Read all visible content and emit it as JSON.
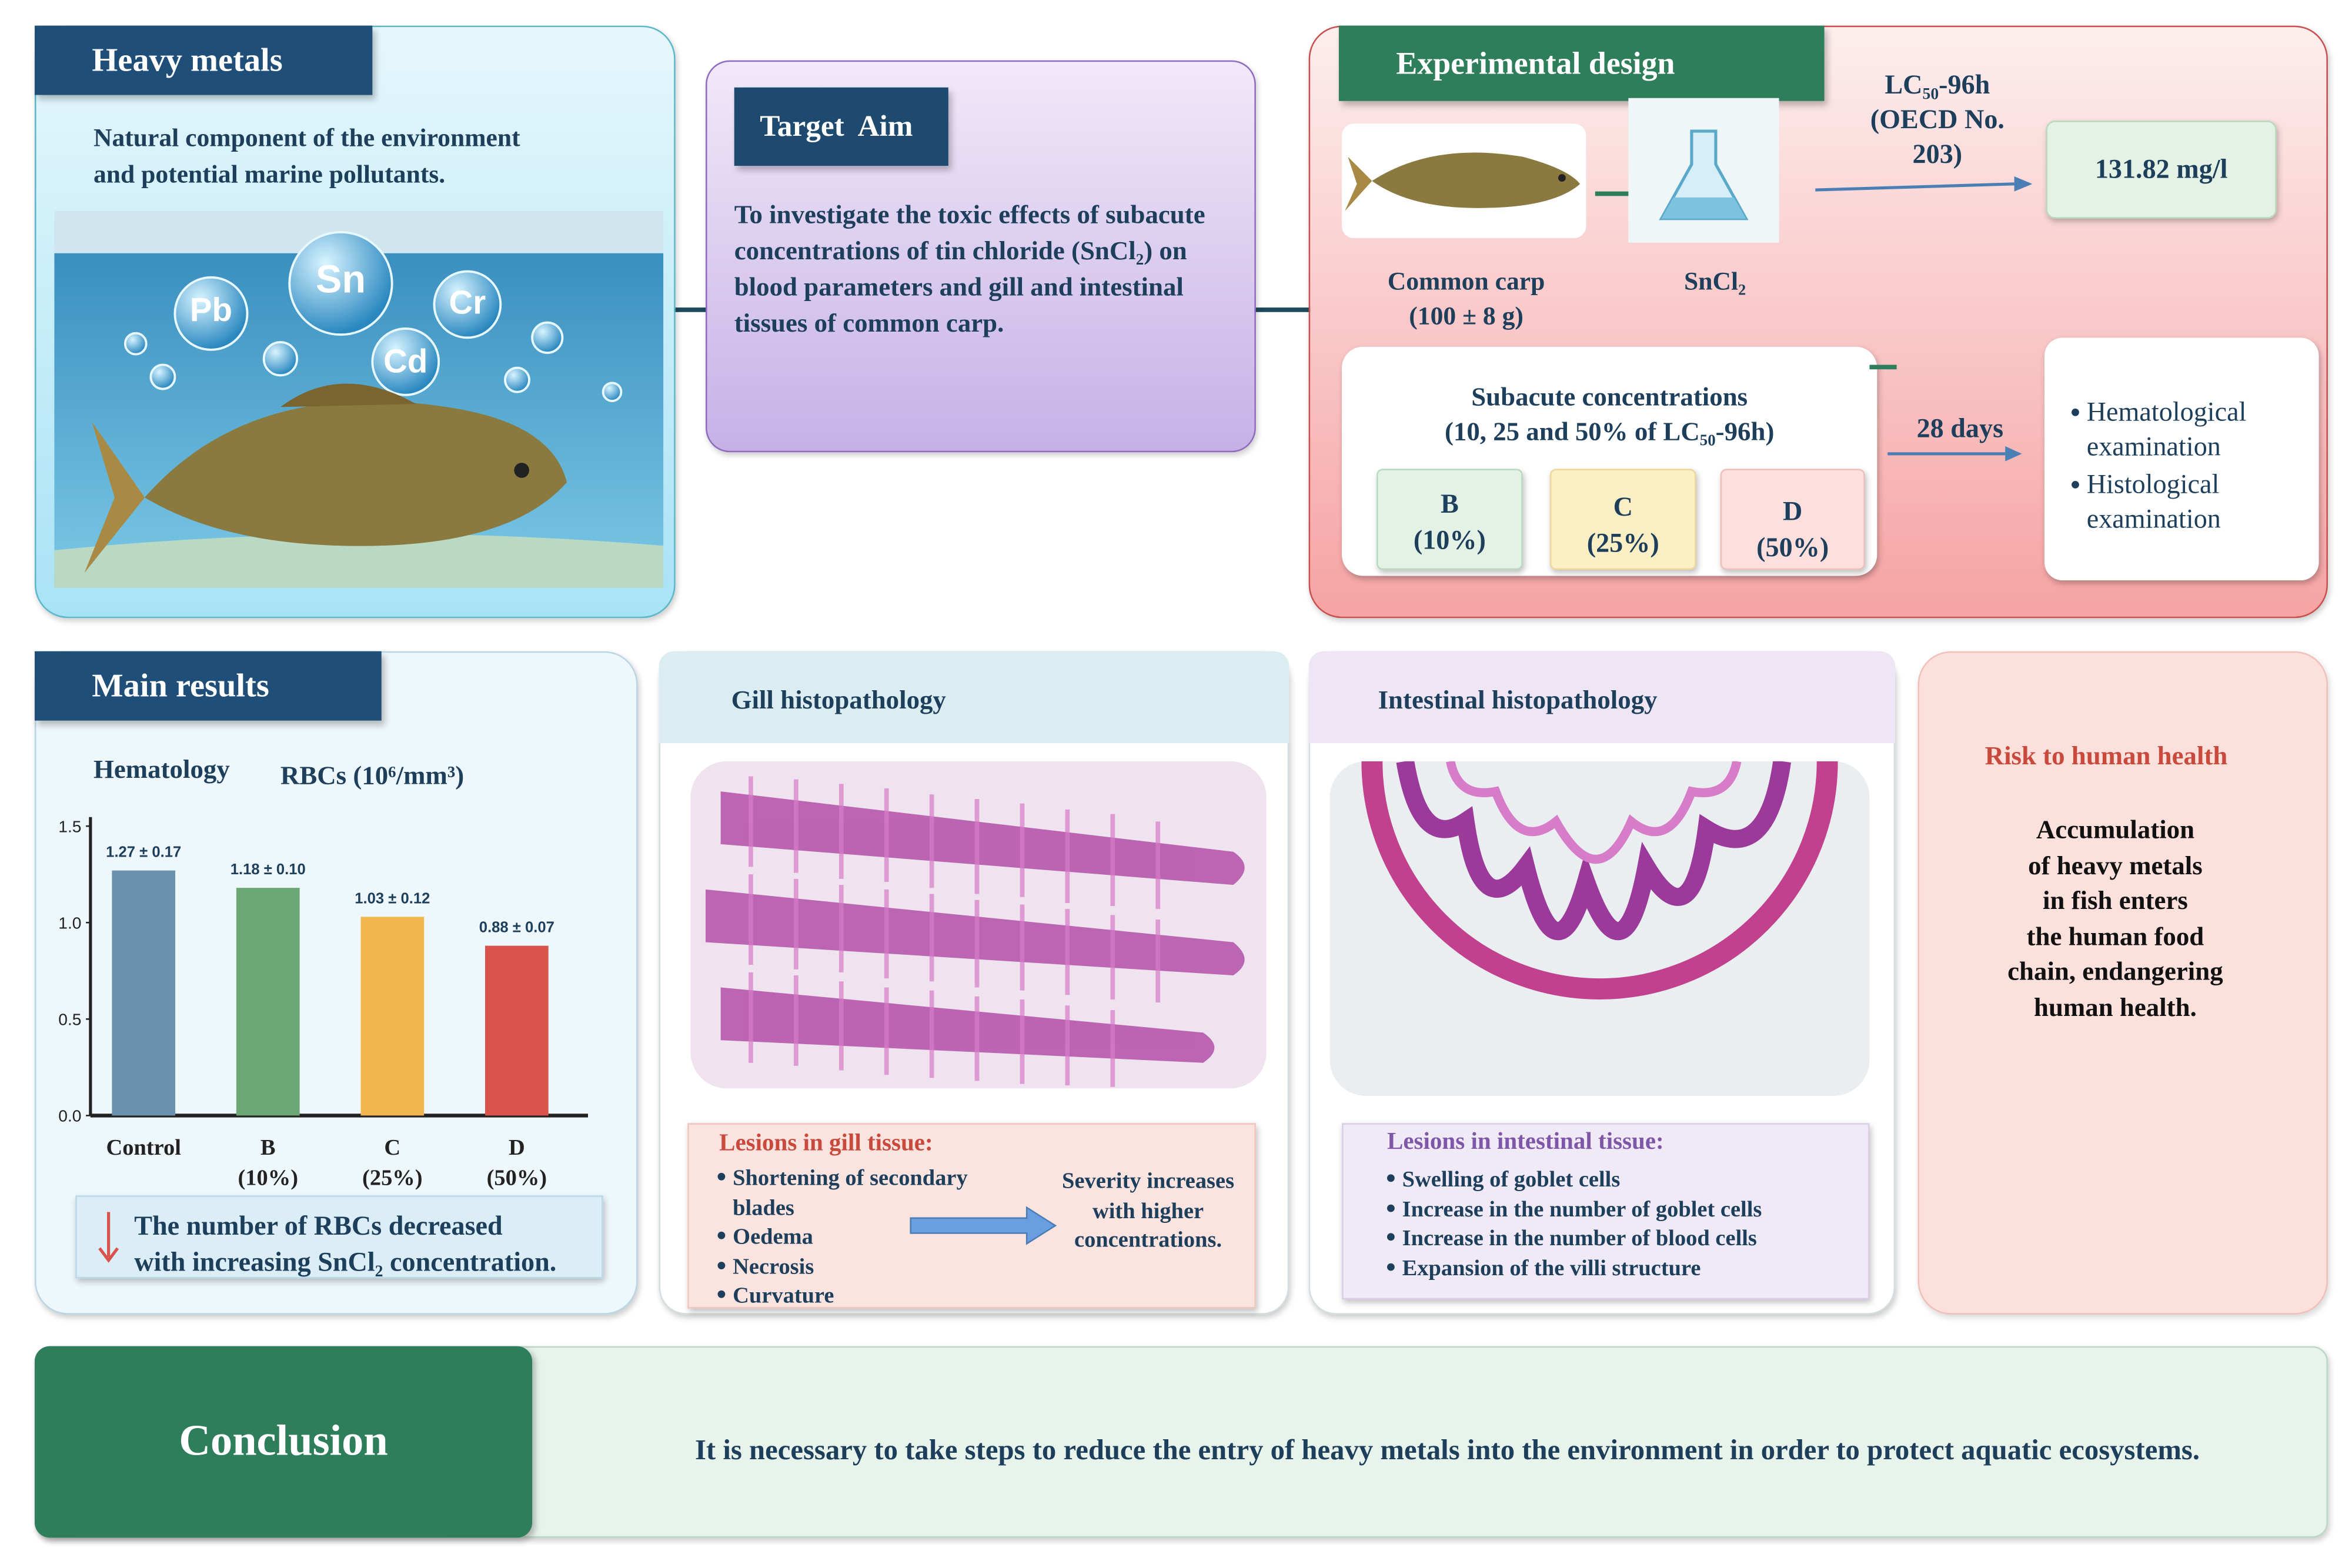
{
  "heavy_metals": {
    "title": "Heavy metals",
    "text": "Natural component of the environment\nand potential marine pollutants.",
    "elements": [
      "Pb",
      "Sn",
      "Cr",
      "Cd"
    ]
  },
  "target_aim": {
    "title": "Target  Aim",
    "text": "To investigate the toxic effects of subacute concentrations of tin chloride (SnCl₂) on blood parameters and gill and intestinal tissues of common carp."
  },
  "experimental_design": {
    "title": "Experimental design",
    "fish_label": "Common carp\n(100 ± 8 g)",
    "chemical_label": "SnCl₂",
    "lc50_label": "LC₅₀-96h\n(OECD No.\n203)",
    "lc50_value": "131.82 mg/l",
    "subacute": "Subacute concentrations\n(10, 25 and 50% of LC₅₀-96h)",
    "groups": [
      "B\n(10%)",
      "C\n(25%)",
      "D\n(50%)"
    ],
    "duration": "28 days",
    "examinations": [
      "Hematological\nexamination",
      "Histological\nexamination"
    ]
  },
  "main_results": {
    "title": "Main results",
    "section": "Hematology",
    "chart": {
      "type": "bar",
      "title": "RBCs (10⁶/mm³)",
      "categories": [
        "Control",
        "B\n(10%)",
        "C\n(25%)",
        "D\n(50%)"
      ],
      "values": [
        1.27,
        1.18,
        1.03,
        0.88
      ],
      "value_labels": [
        "1.27 ± 0.17",
        "1.18 ± 0.10",
        "1.03 ± 0.12",
        "0.88 ± 0.07"
      ],
      "colors": [
        "#6a91ad",
        "#6aa775",
        "#f2b64f",
        "#d9534a"
      ],
      "ylim": [
        0,
        1.5
      ],
      "yticks": [
        {
          "value": 0,
          "label": "0.0"
        },
        {
          "value": 0.5,
          "label": "0.5"
        },
        {
          "value": 1,
          "label": "1.0"
        },
        {
          "value": 1.5,
          "label": "1.5"
        }
      ]
    },
    "note": "The number of RBCs decreased\nwith increasing SnCl₂ concentration."
  },
  "gill": {
    "title": "Gill histopathology",
    "lesions_title": "Lesions in gill tissue:",
    "lesions": [
      "Shortening of secondary\nblades",
      "Oedema",
      "Necrosis",
      "Curvature"
    ],
    "severity": "Severity increases\nwith higher\nconcentrations."
  },
  "intestine": {
    "title": "Intestinal histopathology",
    "lesions_title": "Lesions in intestinal tissue:",
    "lesions": [
      "Swelling of goblet cells",
      "Increase in the number of goblet cells",
      "Increase in the number of blood cells",
      "Expansion of the villi structure"
    ]
  },
  "risk": {
    "title": "Risk to human health",
    "text": "Accumulation\nof heavy metals\nin fish enters\nthe human food\nchain, endangering\nhuman health."
  },
  "conclusion": {
    "title": "Conclusion",
    "text": "It is necessary to take steps to reduce the entry of heavy metals into the environment in order to protect aquatic ecosystems."
  }
}
